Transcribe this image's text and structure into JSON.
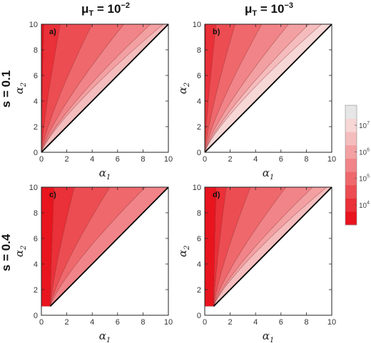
{
  "chart_data": {
    "type": "contour",
    "column_titles": [
      {
        "base": "μ",
        "sub": "T",
        "eq": " = 10",
        "sup": "−2"
      },
      {
        "base": "μ",
        "sub": "T",
        "eq": " = 10",
        "sup": "−3"
      }
    ],
    "row_titles": [
      "s = 0.1",
      "s = 0.4"
    ],
    "xlabel": {
      "base": "α",
      "sub": "1"
    },
    "ylabel": {
      "base": "α",
      "sub": "2"
    },
    "xlim": [
      0,
      10
    ],
    "ylim": [
      0,
      10
    ],
    "xticks": [
      "0",
      "2",
      "4",
      "6",
      "8",
      "10"
    ],
    "yticks": [
      "0",
      "2",
      "4",
      "6",
      "8",
      "10"
    ],
    "legend": {
      "placement": "right",
      "colors": [
        "#e8141e",
        "#ea3038",
        "#ec4d52",
        "#ee686c",
        "#f18488",
        "#f3a0a2",
        "#f5bcbd",
        "#f7d6d6",
        "#e6e6e6"
      ],
      "ticks": [
        {
          "base": "10",
          "sup": "4",
          "level": 1.5
        },
        {
          "base": "10",
          "sup": "5",
          "level": 3.5
        },
        {
          "base": "10",
          "sup": "6",
          "level": 5.5
        },
        {
          "base": "10",
          "sup": "7",
          "level": 7.5
        }
      ]
    },
    "panels": [
      {
        "label": "a)",
        "row": 0,
        "col": 0,
        "diag_start": 0.0,
        "boundaries": [
          0.2,
          1.5,
          4.0,
          6.5,
          8.6,
          9.6
        ]
      },
      {
        "label": "b)",
        "row": 0,
        "col": 1,
        "diag_start": 0.0,
        "boundaries": [
          0.1,
          0.9,
          2.4,
          4.5,
          6.6,
          8.2,
          9.2
        ]
      },
      {
        "label": "c)",
        "row": 1,
        "col": 0,
        "diag_start": 0.7,
        "boundaries": [
          1.0,
          2.6,
          5.4,
          8.2
        ]
      },
      {
        "label": "d)",
        "row": 1,
        "col": 1,
        "diag_start": 0.7,
        "boundaries": [
          0.9,
          1.7,
          3.6,
          6.4,
          8.5,
          9.6
        ]
      }
    ]
  }
}
